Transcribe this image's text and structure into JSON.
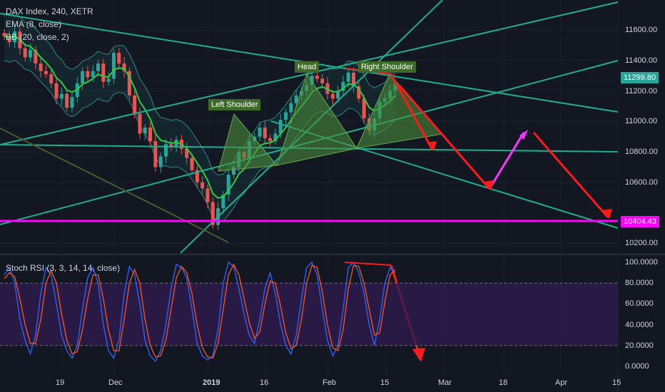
{
  "legend": {
    "main": "DAX Index, 240, XETR",
    "ema": "EMA (8, close)",
    "bb": "BB (20, close, 2)",
    "stoch": "Stoch RSI (3, 3, 14, 14, close)"
  },
  "colors": {
    "background": "#131722",
    "bull": "#26a69a",
    "bear": "#ef5350",
    "ema": "#2ecc40",
    "bb": "#2a8c85",
    "trend": "#1fae8f",
    "support": "#ff00ff",
    "arrow": "#ff1a1a",
    "arrow_up": "#ff33ff",
    "pattern": "#4a8c3a",
    "k": "#2962ff",
    "d": "#f4511e",
    "rsi_band": "#2e1b4d"
  },
  "annotations": {
    "left_shoulder": "Left Shoulder",
    "head": "Head",
    "right_shoulder": "Right Shoulder"
  },
  "chart_data": [
    {
      "type": "candlestick",
      "title": "DAX Index, 240, XETR",
      "price_axis_ticks": [
        "11600.00",
        "11400.00",
        "11200.00",
        "11000.00",
        "10800.00",
        "10600.00",
        "10200.00"
      ],
      "time_axis_ticks": [
        "19",
        "Dec",
        "2019",
        "16",
        "Feb",
        "15",
        "Mar",
        "18",
        "Apr",
        "15"
      ],
      "price_labels": {
        "last": "11299.80",
        "support": "10404.43"
      },
      "ylim": [
        10200,
        11750
      ],
      "ohlc_series_trace": [
        11560,
        11520,
        11590,
        11480,
        11420,
        11470,
        11380,
        11330,
        11310,
        11250,
        11150,
        11180,
        11090,
        11160,
        11250,
        11330,
        11290,
        11330,
        11380,
        11260,
        11280,
        11450,
        11380,
        11330,
        11170,
        11050,
        10920,
        10960,
        10870,
        10700,
        10770,
        10850,
        10830,
        10880,
        10820,
        10760,
        10680,
        10600,
        10560,
        10470,
        10320,
        10430,
        10520,
        10650,
        10700,
        10800,
        10760,
        10870,
        10900,
        10960,
        10890,
        10870,
        10920,
        11010,
        11060,
        11120,
        11170,
        11200,
        11240,
        11300,
        11280,
        11250,
        11180,
        11150,
        11200,
        11260,
        11320,
        11230,
        11150,
        11020,
        10940,
        11020,
        11130,
        11150,
        11200,
        11250
      ],
      "support_level": 10404.43,
      "pattern": "Head and Shoulders"
    },
    {
      "type": "line",
      "title": "Stoch RSI (3, 3, 14, 14, close)",
      "axis_ticks": [
        "100.0000",
        "80.0000",
        "60.0000",
        "40.0000",
        "20.0000",
        "0.0000"
      ],
      "ylim": [
        0,
        100
      ],
      "bands": [
        20,
        80
      ],
      "series": [
        {
          "name": "K",
          "values": [
            88,
            95,
            80,
            45,
            25,
            12,
            30,
            70,
            95,
            88,
            60,
            30,
            15,
            8,
            20,
            55,
            85,
            95,
            80,
            40,
            15,
            8,
            25,
            70,
            96,
            88,
            60,
            25,
            10,
            5,
            15,
            40,
            75,
            98,
            95,
            85,
            55,
            22,
            10,
            6,
            10,
            35,
            80,
            100,
            96,
            75,
            50,
            30,
            22,
            45,
            75,
            90,
            70,
            40,
            20,
            12,
            30,
            65,
            95,
            100,
            88,
            55,
            25,
            10,
            20,
            55,
            95,
            100,
            90,
            70,
            40,
            20,
            45,
            80,
            95,
            90
          ]
        },
        {
          "name": "D",
          "values": [
            84,
            90,
            86,
            65,
            40,
            22,
            22,
            45,
            80,
            92,
            80,
            50,
            25,
            12,
            14,
            35,
            65,
            88,
            88,
            65,
            35,
            15,
            15,
            45,
            80,
            93,
            80,
            45,
            20,
            9,
            10,
            25,
            55,
            85,
            96,
            90,
            70,
            40,
            18,
            9,
            8,
            22,
            55,
            88,
            98,
            88,
            65,
            42,
            27,
            33,
            60,
            82,
            80,
            58,
            32,
            17,
            20,
            45,
            80,
            97,
            95,
            72,
            40,
            18,
            15,
            35,
            75,
            97,
            96,
            80,
            55,
            30,
            32,
            62,
            88,
            93
          ]
        }
      ]
    }
  ]
}
